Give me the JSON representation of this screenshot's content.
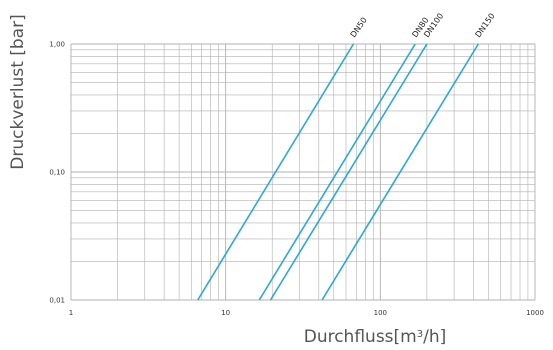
{
  "chart_data": {
    "type": "line",
    "xlabel": "Durchfluss[m³/h]",
    "ylabel": "Druckverlust [bar]",
    "xscale": "log",
    "yscale": "log",
    "xlim": [
      1,
      1000
    ],
    "ylim": [
      0.01,
      1.0
    ],
    "grid": true,
    "x_tick_labels": [
      "1",
      "10",
      "100",
      "1000"
    ],
    "y_tick_labels": [
      "0,01",
      "0,10",
      "1,00"
    ],
    "line_color": "#2aa8d8",
    "grid_color": "#b0b0b0",
    "series": [
      {
        "name": "DN50",
        "x": [
          6.6,
          67
        ],
        "y": [
          0.01,
          1.0
        ]
      },
      {
        "name": "DN80",
        "x": [
          16.5,
          168
        ],
        "y": [
          0.01,
          1.0
        ]
      },
      {
        "name": "DN100",
        "x": [
          19.5,
          200
        ],
        "y": [
          0.01,
          1.0
        ]
      },
      {
        "name": "DN150",
        "x": [
          42,
          430
        ],
        "y": [
          0.01,
          1.0
        ]
      }
    ]
  }
}
